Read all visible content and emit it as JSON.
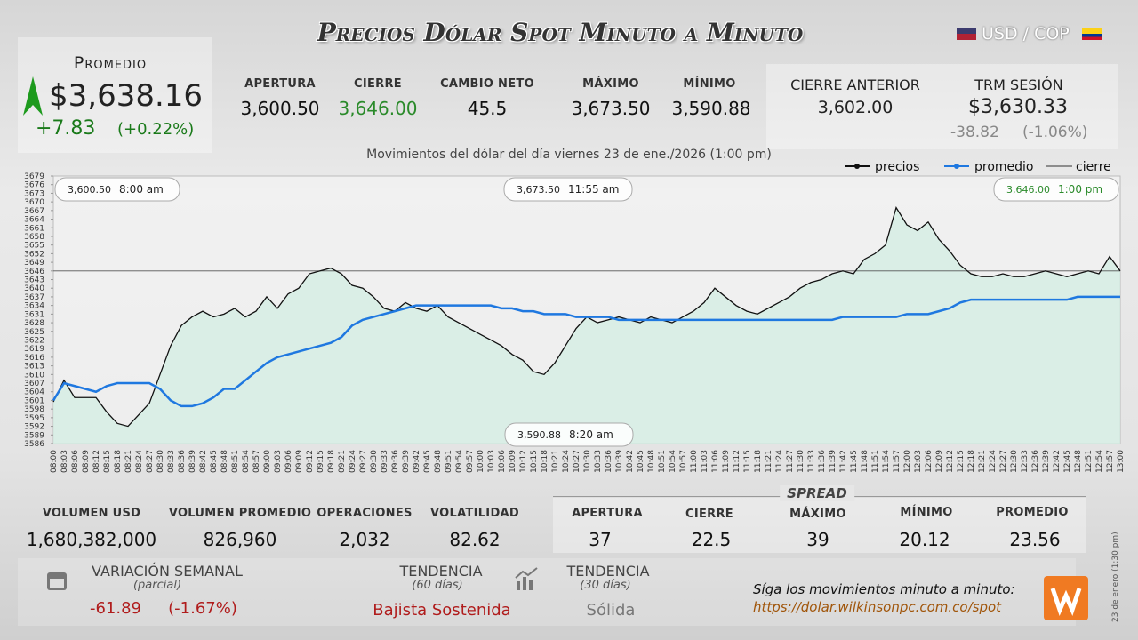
{
  "header": {
    "title": "Precios Dólar Spot Minuto a Minuto",
    "pair": "USD / COP"
  },
  "promedio": {
    "label": "Promedio",
    "value": "$3,638.16",
    "change": "+7.83",
    "change_pct": "(+0.22%)"
  },
  "stats": [
    {
      "label": "APERTURA",
      "value": "3,600.50"
    },
    {
      "label": "CIERRE",
      "value": "3,646.00"
    },
    {
      "label": "CAMBIO NETO",
      "value": "45.5"
    },
    {
      "label": "MÁXIMO",
      "value": "3,673.50"
    },
    {
      "label": "MÍNIMO",
      "value": "3,590.88"
    }
  ],
  "previous": {
    "label": "CIERRE ANTERIOR",
    "value": "3,602.00"
  },
  "trm": {
    "label": "TRM SESIÓN",
    "value": "$3,630.33",
    "change": "-38.82",
    "change_pct": "(-1.06%)"
  },
  "chart_data": {
    "type": "line",
    "subtitle": "Movimientos del dólar del día viernes 23 de ene./2026 (1:00 pm)",
    "categories": [
      "08:00",
      "08:03",
      "08:06",
      "08:09",
      "08:12",
      "08:15",
      "08:18",
      "08:21",
      "08:24",
      "08:27",
      "08:30",
      "08:33",
      "08:36",
      "08:39",
      "08:42",
      "08:45",
      "08:48",
      "08:51",
      "08:54",
      "08:57",
      "09:00",
      "09:03",
      "09:06",
      "09:09",
      "09:12",
      "09:15",
      "09:18",
      "09:21",
      "09:24",
      "09:27",
      "09:30",
      "09:33",
      "09:36",
      "09:39",
      "09:42",
      "09:45",
      "09:48",
      "09:51",
      "09:54",
      "09:57",
      "10:00",
      "10:03",
      "10:06",
      "10:09",
      "10:12",
      "10:15",
      "10:18",
      "10:21",
      "10:24",
      "10:27",
      "10:30",
      "10:33",
      "10:36",
      "10:39",
      "10:42",
      "10:45",
      "10:48",
      "10:51",
      "10:54",
      "10:57",
      "11:00",
      "11:03",
      "11:06",
      "11:09",
      "11:12",
      "11:15",
      "11:18",
      "11:21",
      "11:24",
      "11:27",
      "11:30",
      "11:33",
      "11:36",
      "11:39",
      "11:42",
      "11:45",
      "11:48",
      "11:51",
      "11:54",
      "11:57",
      "12:00",
      "12:03",
      "12:06",
      "12:09",
      "12:12",
      "12:15",
      "12:18",
      "12:21",
      "12:24",
      "12:27",
      "12:30",
      "12:33",
      "12:36",
      "12:39",
      "12:42",
      "12:45",
      "12:48",
      "12:51",
      "12:54",
      "12:57",
      "13:00"
    ],
    "series": [
      {
        "name": "precios",
        "color": "#111111",
        "values": [
          3600.5,
          3608,
          3602,
          3602,
          3602,
          3597,
          3593,
          3592,
          3596,
          3600,
          3610,
          3620,
          3627,
          3630,
          3632,
          3630,
          3631,
          3633,
          3630,
          3632,
          3637,
          3633,
          3638,
          3640,
          3645,
          3646,
          3647,
          3645,
          3641,
          3640,
          3637,
          3633,
          3632,
          3635,
          3633,
          3632,
          3634,
          3630,
          3628,
          3626,
          3624,
          3622,
          3620,
          3617,
          3615,
          3611,
          3610,
          3614,
          3620,
          3626,
          3630,
          3628,
          3629,
          3630,
          3629,
          3628,
          3630,
          3629,
          3628,
          3630,
          3632,
          3635,
          3640,
          3637,
          3634,
          3632,
          3631,
          3633,
          3635,
          3637,
          3640,
          3642,
          3643,
          3645,
          3646,
          3645,
          3650,
          3652,
          3655,
          3668,
          3662,
          3660,
          3663,
          3657,
          3653,
          3648,
          3645,
          3644,
          3644,
          3645,
          3644,
          3644,
          3645,
          3646,
          3645,
          3644,
          3645,
          3646,
          3645,
          3651,
          3646
        ]
      },
      {
        "name": "promedio",
        "color": "#1f78e0",
        "values": [
          3601,
          3607,
          3606,
          3605,
          3604,
          3606,
          3607,
          3607,
          3607,
          3607,
          3605,
          3601,
          3599,
          3599,
          3600,
          3602,
          3605,
          3605,
          3608,
          3611,
          3614,
          3616,
          3617,
          3618,
          3619,
          3620,
          3621,
          3623,
          3627,
          3629,
          3630,
          3631,
          3632,
          3633,
          3634,
          3634,
          3634,
          3634,
          3634,
          3634,
          3634,
          3634,
          3633,
          3633,
          3632,
          3632,
          3631,
          3631,
          3631,
          3630,
          3630,
          3630,
          3630,
          3629,
          3629,
          3629,
          3629,
          3629,
          3629,
          3629,
          3629,
          3629,
          3629,
          3629,
          3629,
          3629,
          3629,
          3629,
          3629,
          3629,
          3629,
          3629,
          3629,
          3629,
          3630,
          3630,
          3630,
          3630,
          3630,
          3630,
          3631,
          3631,
          3631,
          3632,
          3633,
          3635,
          3636,
          3636,
          3636,
          3636,
          3636,
          3636,
          3636,
          3636,
          3636,
          3636,
          3637,
          3637,
          3637,
          3637,
          3637
        ]
      }
    ],
    "reference_line": {
      "name": "cierre",
      "value": 3646,
      "color": "#555555"
    },
    "area_color": "#d4ede4",
    "ylim": [
      3586,
      3679
    ],
    "yticks": [
      3586,
      3589,
      3592,
      3595,
      3598,
      3601,
      3604,
      3607,
      3610,
      3613,
      3616,
      3619,
      3622,
      3625,
      3628,
      3631,
      3634,
      3637,
      3640,
      3643,
      3646,
      3649,
      3652,
      3655,
      3658,
      3661,
      3664,
      3667,
      3670,
      3673,
      3676,
      3679
    ],
    "annotations": [
      {
        "value": "3,600.50",
        "time": "8:00 am"
      },
      {
        "value": "3,673.50",
        "time": "11:55 am"
      },
      {
        "value": "3,646.00",
        "time": "1:00 pm"
      },
      {
        "value": "3,590.88",
        "time": "8:20 am"
      }
    ]
  },
  "volume": [
    {
      "label": "VOLUMEN USD",
      "value": "1,680,382,000"
    },
    {
      "label": "VOLUMEN PROMEDIO",
      "value": "826,960"
    },
    {
      "label": "OPERACIONES",
      "value": "2,032"
    },
    {
      "label": "VOLATILIDAD",
      "value": "82.62"
    }
  ],
  "spread": {
    "title": "SPREAD",
    "items": [
      {
        "label": "APERTURA",
        "value": "37"
      },
      {
        "label": "CIERRE",
        "value": "22.5"
      },
      {
        "label": "MÁXIMO",
        "value": "39"
      },
      {
        "label": "MÍNIMO",
        "value": "20.12"
      },
      {
        "label": "PROMEDIO",
        "value": "23.56"
      }
    ]
  },
  "weekly": {
    "label": "VARIACIÓN SEMANAL",
    "sub": "(parcial)",
    "value": "-61.89",
    "pct": "(-1.67%)"
  },
  "trend60": {
    "label": "TENDENCIA",
    "sub": "(60 días)",
    "value": "Bajista Sostenida"
  },
  "trend30": {
    "label": "TENDENCIA",
    "sub": "(30 días)",
    "value": "Sólida"
  },
  "footer": {
    "text": "Síga los movimientos minuto a minuto:",
    "link": "https://dolar.wilkinsonpc.com.co/spot",
    "stamp": "23 de enero (1:30 pm)"
  }
}
